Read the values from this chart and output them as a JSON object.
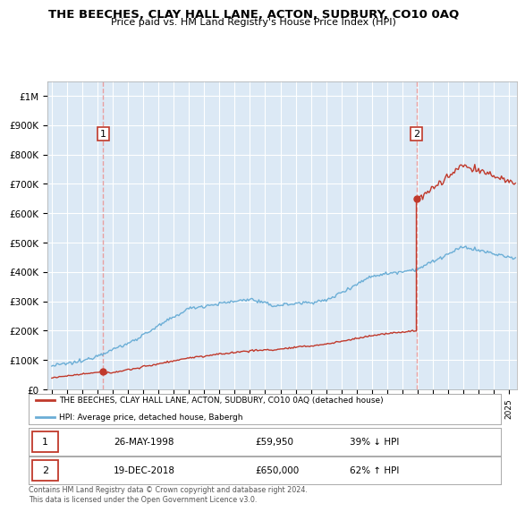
{
  "title": "THE BEECHES, CLAY HALL LANE, ACTON, SUDBURY, CO10 0AQ",
  "subtitle": "Price paid vs. HM Land Registry's House Price Index (HPI)",
  "ylim": [
    0,
    1050000
  ],
  "yticks": [
    0,
    100000,
    200000,
    300000,
    400000,
    500000,
    600000,
    700000,
    800000,
    900000,
    1000000
  ],
  "ytick_labels": [
    "£0",
    "£100K",
    "£200K",
    "£300K",
    "£400K",
    "£500K",
    "£600K",
    "£700K",
    "£800K",
    "£900K",
    "£1M"
  ],
  "hpi_color": "#6baed6",
  "price_color": "#c0392b",
  "vline_color": "#e8a0a0",
  "bg_color": "#dce9f5",
  "sale1_year": 1998.375,
  "sale1_price": 59950,
  "sale2_year": 2018.917,
  "sale2_price": 650000,
  "sale1_date": "26-MAY-1998",
  "sale1_hpi_text": "39% ↓ HPI",
  "sale2_date": "19-DEC-2018",
  "sale2_hpi_text": "62% ↑ HPI",
  "legend_label1": "THE BEECHES, CLAY HALL LANE, ACTON, SUDBURY, CO10 0AQ (detached house)",
  "legend_label2": "HPI: Average price, detached house, Babergh",
  "footer": "Contains HM Land Registry data © Crown copyright and database right 2024.\nThis data is licensed under the Open Government Licence v3.0.",
  "xlim_left": 1994.7,
  "xlim_right": 2025.5
}
